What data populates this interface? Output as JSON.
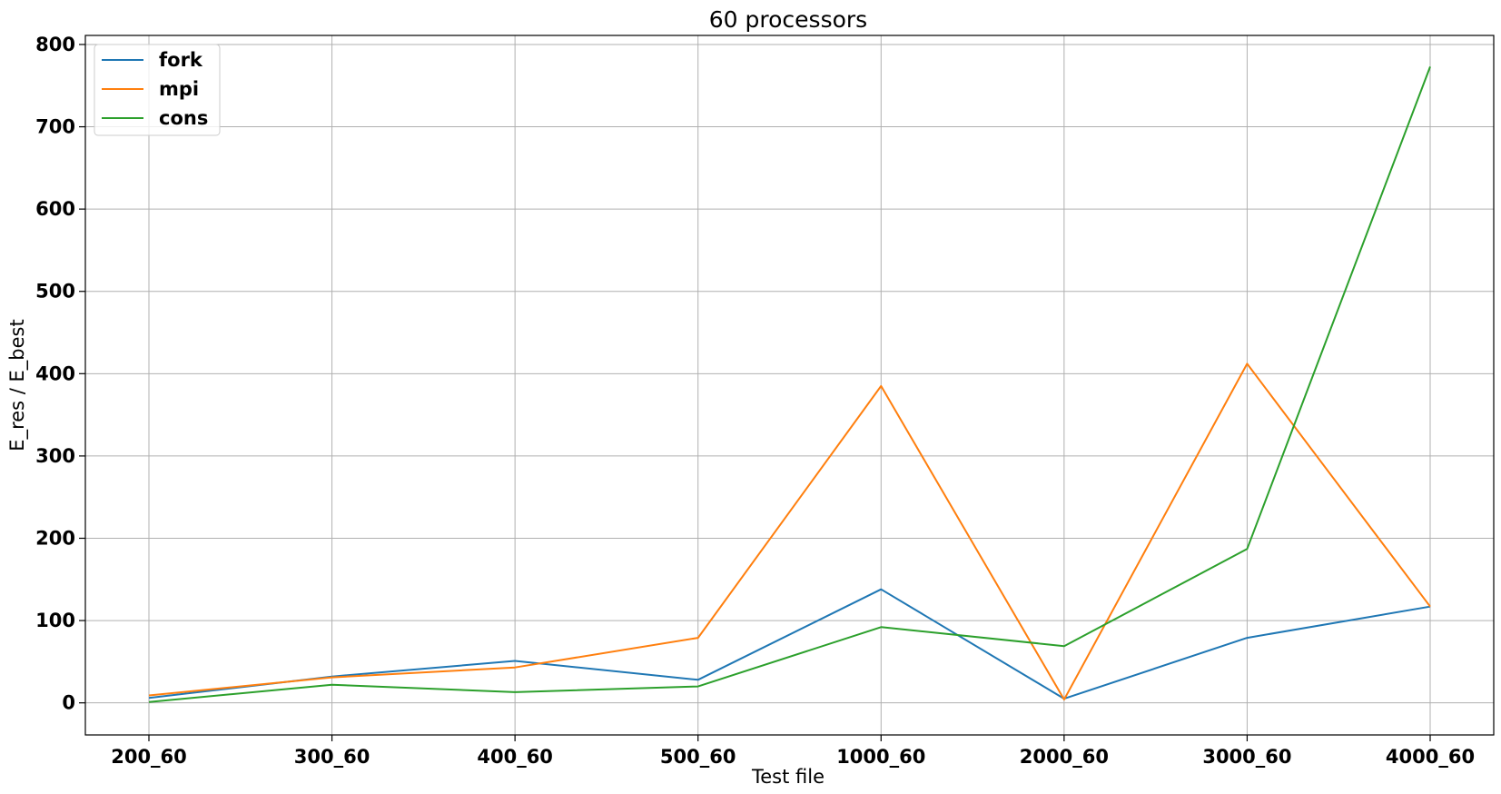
{
  "chart_data": {
    "type": "line",
    "title": "60 processors",
    "xlabel": "Test file",
    "ylabel": "E_res / E_best",
    "categories": [
      "200_60",
      "300_60",
      "400_60",
      "500_60",
      "1000_60",
      "2000_60",
      "3000_60",
      "4000_60"
    ],
    "series": [
      {
        "name": "fork",
        "color": "#1f77b4",
        "values": [
          6,
          32,
          51,
          28,
          138,
          5,
          79,
          117
        ]
      },
      {
        "name": "mpi",
        "color": "#ff7f0e",
        "values": [
          9,
          31,
          43,
          79,
          385,
          4,
          412,
          117
        ]
      },
      {
        "name": "cons",
        "color": "#2ca02c",
        "values": [
          1,
          22,
          13,
          20,
          92,
          69,
          187,
          773
        ]
      }
    ],
    "ylim": [
      -39,
      811
    ],
    "yticks": [
      0,
      100,
      200,
      300,
      400,
      500,
      600,
      700,
      800
    ],
    "grid": true,
    "legend_position": "upper-left"
  }
}
